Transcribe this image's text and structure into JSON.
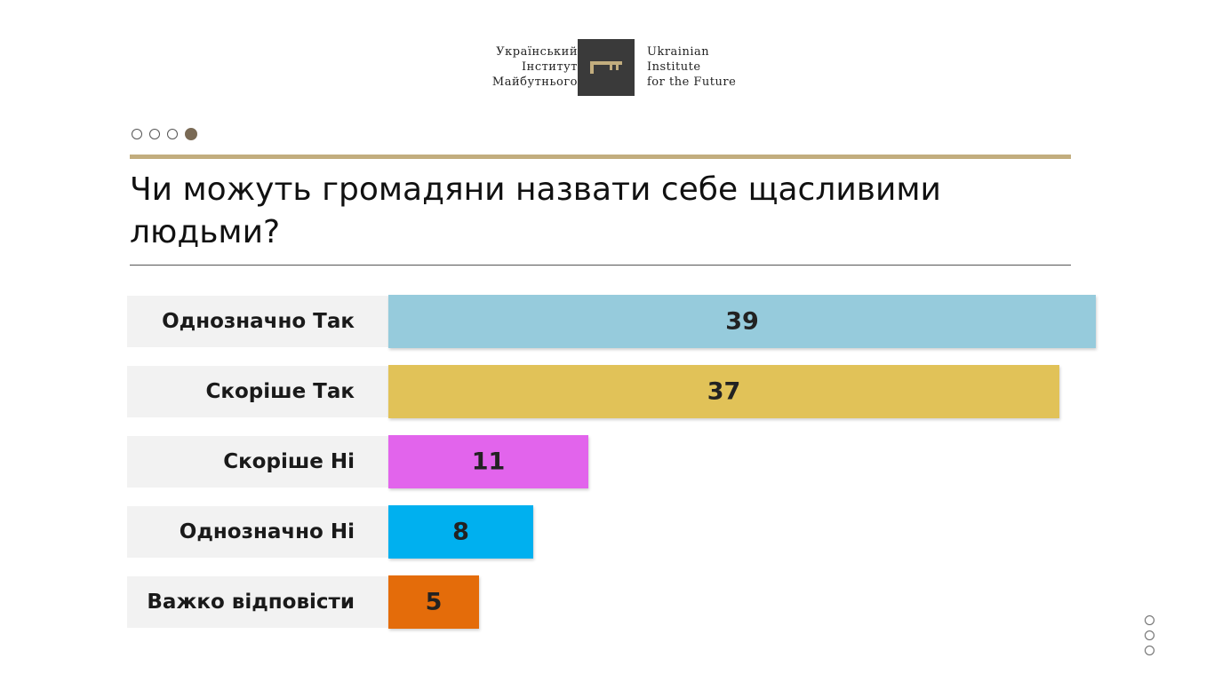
{
  "logo": {
    "ua_line1": "Український",
    "ua_line2": "Інститут",
    "ua_line3": "Майбутнього",
    "en_line1": "Ukrainian",
    "en_line2": "Institute",
    "en_line3": "for the Future",
    "icon": "key-icon"
  },
  "pager": {
    "total": 4,
    "active": 4
  },
  "title": "Чи можуть громадяни назвати себе щасливими людьми?",
  "chart_data": {
    "type": "bar",
    "orientation": "horizontal",
    "categories": [
      "Однозначно Так",
      "Скоріше Так",
      "Скоріше Ні",
      "Однозначно Ні",
      "Важко відповісти"
    ],
    "values": [
      39,
      37,
      11,
      8,
      5
    ],
    "colors": [
      "#96cbdc",
      "#e1c258",
      "#e264ec",
      "#00b0ef",
      "#e46c0a"
    ],
    "data_labels": [
      "39",
      "37",
      "11",
      "8",
      "5"
    ],
    "xlim": [
      0,
      39
    ],
    "title": "",
    "xlabel": "",
    "ylabel": "",
    "grid": false,
    "legend": "none"
  },
  "sidenav": {
    "count": 3
  }
}
